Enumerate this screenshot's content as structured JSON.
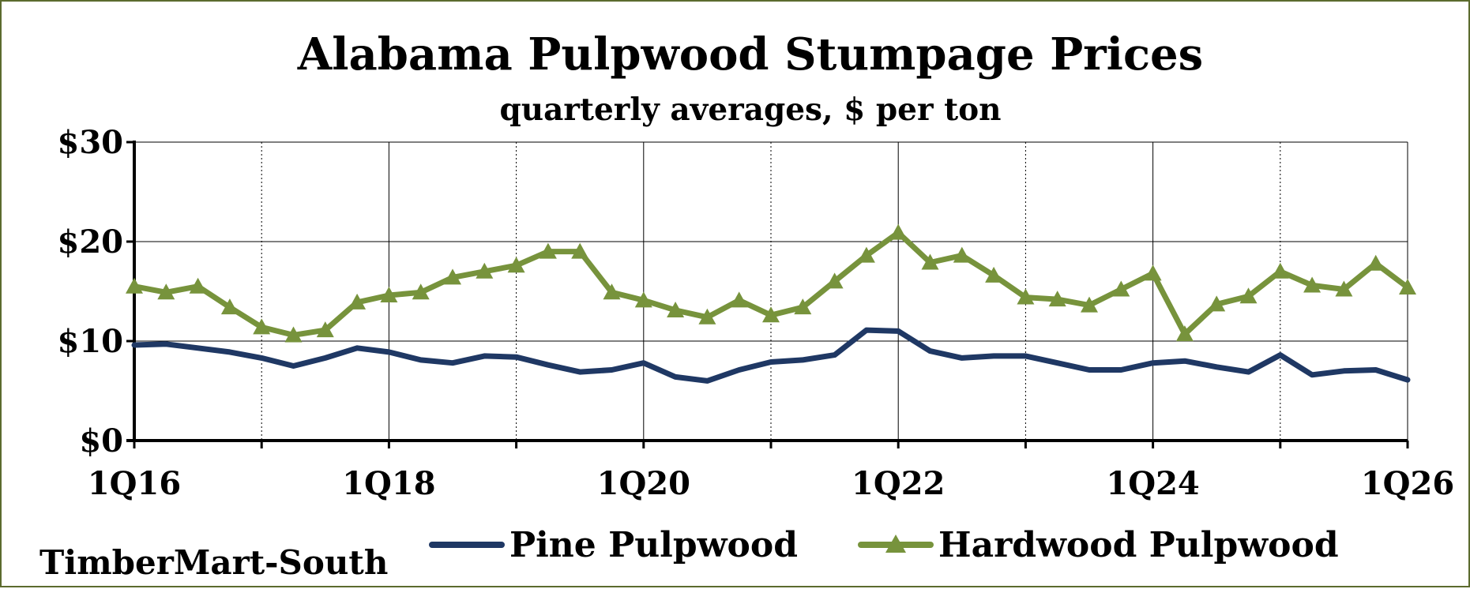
{
  "chart_data": {
    "type": "line",
    "title": "Alabama Pulpwood Stumpage Prices",
    "subtitle": "quarterly averages, $ per ton",
    "source": "TimberMart-South",
    "xlabel": "",
    "ylabel": "",
    "ylim": [
      0,
      30
    ],
    "yticks": [
      "$0",
      "$10",
      "$20",
      "$30"
    ],
    "xticks": [
      "1Q16",
      "1Q18",
      "1Q20",
      "1Q22",
      "1Q24",
      "1Q26"
    ],
    "grid": true,
    "legend_position": "bottom",
    "categories": [
      "1Q16",
      "2Q16",
      "3Q16",
      "4Q16",
      "1Q17",
      "2Q17",
      "3Q17",
      "4Q17",
      "1Q18",
      "2Q18",
      "3Q18",
      "4Q18",
      "1Q19",
      "2Q19",
      "3Q19",
      "4Q19",
      "1Q20",
      "2Q20",
      "3Q20",
      "4Q20",
      "1Q21",
      "2Q21",
      "3Q21",
      "4Q21",
      "1Q22",
      "2Q22",
      "3Q22",
      "4Q22",
      "1Q23",
      "2Q23",
      "3Q23",
      "4Q23",
      "1Q24",
      "2Q24",
      "3Q24",
      "4Q24",
      "1Q25",
      "2Q25",
      "3Q25",
      "4Q25",
      "1Q26"
    ],
    "series": [
      {
        "name": "Pine Pulpwood",
        "color": "#1f3864",
        "marker": "none",
        "values": [
          9.6,
          9.7,
          9.3,
          8.9,
          8.3,
          7.5,
          8.3,
          9.3,
          8.9,
          8.1,
          7.8,
          8.5,
          8.4,
          7.6,
          6.9,
          7.1,
          7.8,
          6.4,
          6.0,
          7.1,
          7.9,
          8.1,
          8.6,
          11.1,
          11.0,
          9.0,
          8.3,
          8.5,
          8.5,
          7.8,
          7.1,
          7.1,
          7.8,
          8.0,
          7.4,
          6.9,
          8.6,
          6.6,
          7.0,
          7.1,
          6.1
        ]
      },
      {
        "name": "Hardwood Pulpwood",
        "color": "#77933c",
        "marker": "triangle",
        "values": [
          15.5,
          14.9,
          15.5,
          13.4,
          11.4,
          10.6,
          11.1,
          13.9,
          14.6,
          14.9,
          16.4,
          17.0,
          17.6,
          19.0,
          19.0,
          14.9,
          14.1,
          13.1,
          12.4,
          14.1,
          12.6,
          13.4,
          16.0,
          18.6,
          20.9,
          17.9,
          18.6,
          16.6,
          14.4,
          14.2,
          13.6,
          15.2,
          16.8,
          10.7,
          13.7,
          14.5,
          17.0,
          15.6,
          15.2,
          17.8,
          15.4
        ]
      }
    ]
  }
}
